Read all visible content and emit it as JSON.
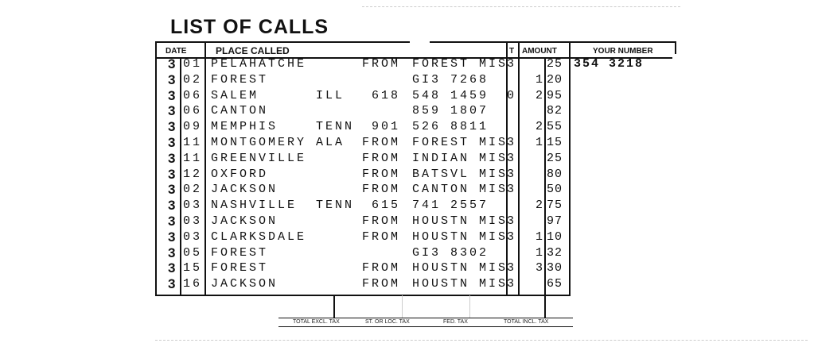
{
  "title": "LIST OF CALLS",
  "headers": {
    "date": "DATE",
    "place": "PLACE CALLED",
    "t": "T",
    "amount": "AMOUNT",
    "your_number": "YOUR NUMBER"
  },
  "your_number": "354 3218",
  "rows": [
    {
      "month": "3",
      "day": "01",
      "city": "PELAHATCHE",
      "state": "",
      "via": "FROM",
      "to": "FOREST MIS",
      "t": "3",
      "dollars": "",
      "cents": "25"
    },
    {
      "month": "3",
      "day": "02",
      "city": "FOREST",
      "state": "",
      "via": "",
      "to": "GI3 7268",
      "t": "",
      "dollars": "1",
      "cents": "20"
    },
    {
      "month": "3",
      "day": "06",
      "city": "SALEM",
      "state": "ILL",
      "via": "618",
      "to": "548 1459",
      "t": "0",
      "dollars": "2",
      "cents": "95"
    },
    {
      "month": "3",
      "day": "06",
      "city": "CANTON",
      "state": "",
      "via": "",
      "to": "859 1807",
      "t": "",
      "dollars": "",
      "cents": "82"
    },
    {
      "month": "3",
      "day": "09",
      "city": "MEMPHIS",
      "state": "TENN",
      "via": "901",
      "to": "526 8811",
      "t": "",
      "dollars": "2",
      "cents": "55"
    },
    {
      "month": "3",
      "day": "11",
      "city": "MONTGOMERY",
      "state": "ALA",
      "via": "FROM",
      "to": "FOREST MIS",
      "t": "3",
      "dollars": "1",
      "cents": "15"
    },
    {
      "month": "3",
      "day": "11",
      "city": "GREENVILLE",
      "state": "",
      "via": "FROM",
      "to": "INDIAN MIS",
      "t": "3",
      "dollars": "",
      "cents": "25"
    },
    {
      "month": "3",
      "day": "12",
      "city": "OXFORD",
      "state": "",
      "via": "FROM",
      "to": "BATSVL MIS",
      "t": "3",
      "dollars": "",
      "cents": "80"
    },
    {
      "month": "3",
      "day": "02",
      "city": "JACKSON",
      "state": "",
      "via": "FROM",
      "to": "CANTON MIS",
      "t": "3",
      "dollars": "",
      "cents": "50"
    },
    {
      "month": "3",
      "day": "03",
      "city": "NASHVILLE",
      "state": "TENN",
      "via": "615",
      "to": "741 2557",
      "t": "",
      "dollars": "2",
      "cents": "75"
    },
    {
      "month": "3",
      "day": "03",
      "city": "JACKSON",
      "state": "",
      "via": "FROM",
      "to": "HOUSTN MIS",
      "t": "3",
      "dollars": "",
      "cents": "97"
    },
    {
      "month": "3",
      "day": "03",
      "city": "CLARKSDALE",
      "state": "",
      "via": "FROM",
      "to": "HOUSTN MIS",
      "t": "3",
      "dollars": "1",
      "cents": "10"
    },
    {
      "month": "3",
      "day": "05",
      "city": "FOREST",
      "state": "",
      "via": "",
      "to": "GI3 8302",
      "t": "",
      "dollars": "1",
      "cents": "32"
    },
    {
      "month": "3",
      "day": "15",
      "city": "FOREST",
      "state": "",
      "via": "FROM",
      "to": "HOUSTN MIS",
      "t": "3",
      "dollars": "3",
      "cents": "30"
    },
    {
      "month": "3",
      "day": "16",
      "city": "JACKSON",
      "state": "",
      "via": "FROM",
      "to": "HOUSTN MIS",
      "t": "3",
      "dollars": "",
      "cents": "65"
    }
  ],
  "footer": {
    "total_excl_tax": "TOTAL EXCL. TAX",
    "st_loc_tax": "ST. OR LOC. TAX",
    "fed_tax": "FED. TAX",
    "total_incl_tax": "TOTAL INCL. TAX"
  }
}
